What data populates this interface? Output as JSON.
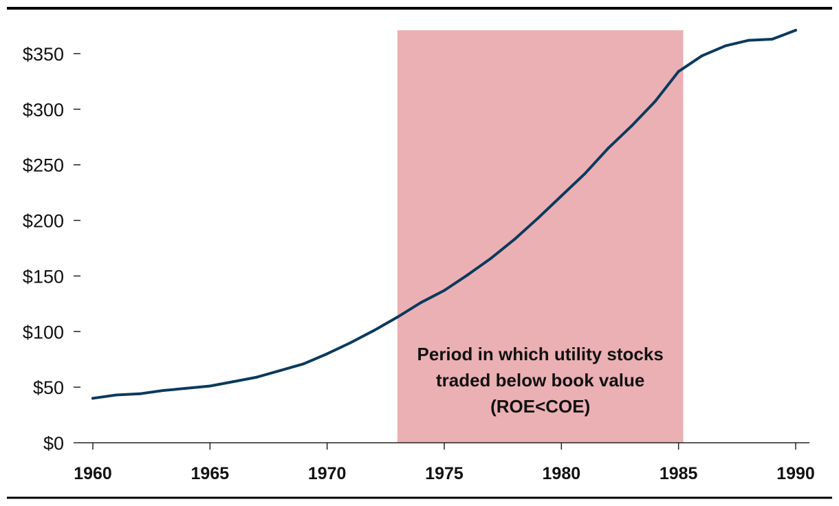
{
  "chart_data": {
    "type": "line",
    "title": "",
    "xlabel": "",
    "ylabel": "",
    "xlim": [
      1960,
      1990
    ],
    "ylim": [
      0,
      370
    ],
    "grid": false,
    "x_ticks": [
      1960,
      1965,
      1970,
      1975,
      1980,
      1985,
      1990
    ],
    "x_tick_labels": [
      "1960",
      "1965",
      "1970",
      "1975",
      "1980",
      "1985",
      "1990"
    ],
    "y_ticks": [
      0,
      50,
      100,
      150,
      200,
      250,
      300,
      350
    ],
    "y_tick_labels": [
      "$0",
      "$50",
      "$100",
      "$150",
      "$200",
      "$250",
      "$300",
      "$350"
    ],
    "series": [
      {
        "color": "#0b3a5e",
        "x": [
          1960,
          1961,
          1962,
          1963,
          1964,
          1965,
          1966,
          1967,
          1968,
          1969,
          1970,
          1971,
          1972,
          1973,
          1974,
          1975,
          1976,
          1977,
          1978,
          1979,
          1980,
          1981,
          1982,
          1983,
          1984,
          1985,
          1986,
          1987,
          1988,
          1989,
          1990
        ],
        "values": [
          40,
          43,
          44,
          47,
          49,
          51,
          55,
          59,
          65,
          71,
          80,
          90,
          101,
          113,
          126,
          137,
          151,
          166,
          183,
          202,
          222,
          242,
          265,
          285,
          307,
          334,
          348,
          357,
          362,
          363,
          371
        ]
      }
    ],
    "shaded_region": {
      "x_start": 1973,
      "x_end": 1985.2,
      "color": "#ebb0b4",
      "annotation": [
        "Period in which utility stocks",
        "traded below book value",
        "(ROE<COE)"
      ]
    },
    "colors": {
      "line": "#0b3a5e",
      "shade": "#ebb0b4",
      "axis": "#222222",
      "rule": "#000000"
    }
  }
}
